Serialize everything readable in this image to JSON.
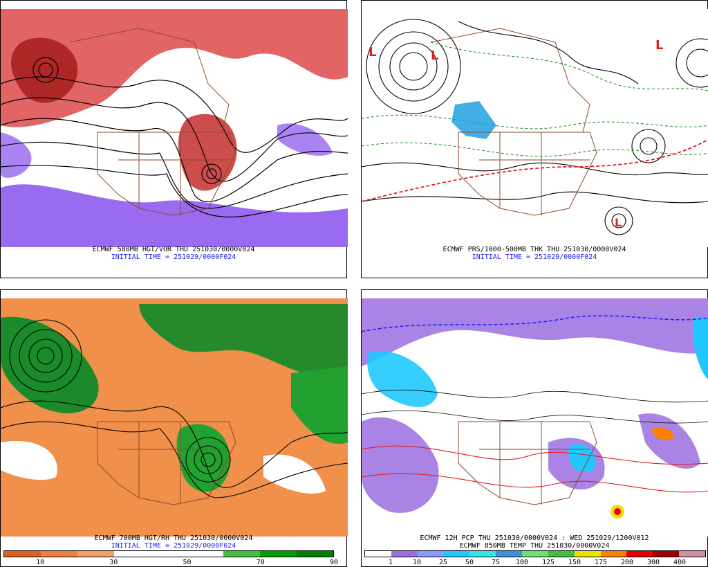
{
  "panels": [
    {
      "caption1": "ECMWF 500MB HGT/VOR THU 251030/0000V024",
      "caption2": "INITIAL TIME = 251029/0000F024"
    },
    {
      "caption1": "ECMWF PRS/1000-500MB THK THU 251030/0000V024",
      "caption2": "INITIAL TIME = 251029/0000F024"
    },
    {
      "caption1": "ECMWF 700MB HGT/RH THU 251030/0000V024",
      "caption2": "INITIAL TIME = 251029/0000F024",
      "colorbar": {
        "ticks": [
          "10",
          "30",
          "50",
          "70",
          "90"
        ],
        "colors": [
          "#e06020",
          "#f08040",
          "#f4a060",
          "#ffffff",
          "#ffffff",
          "#ffffff",
          "#40c040",
          "#00a000",
          "#008000"
        ]
      }
    },
    {
      "caption1": "ECMWF 12H PCP THU 251030/0000V024 : WED 251029/1200V012",
      "caption2": "ECMWF 850MB TEMP THU 251030/0000V024",
      "colorbar": {
        "ticks": [
          "1",
          "10",
          "25",
          "50",
          "75",
          "100",
          "125",
          "150",
          "175",
          "200",
          "300",
          "400"
        ],
        "colors": [
          "#ffffff",
          "#9a6fe0",
          "#8a9cff",
          "#20c8ff",
          "#30e8e8",
          "#4090e0",
          "#70e070",
          "#40c040",
          "#f0e000",
          "#ff8000",
          "#e00000",
          "#a00000",
          "#d090a0"
        ]
      }
    }
  ]
}
